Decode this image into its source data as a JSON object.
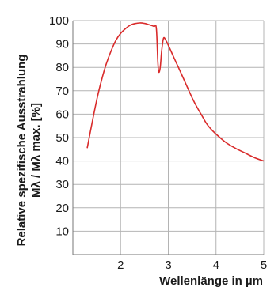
{
  "chart_data": {
    "type": "line",
    "title": "",
    "xlabel": "Wellenlänge in µm",
    "ylabel_line1": "Relative spezifische Ausstrahlung",
    "ylabel_line2": "Mλ / Mλ  max. [%]",
    "xlim": [
      1,
      5
    ],
    "ylim": [
      0,
      100
    ],
    "grid": true,
    "x_ticks": [
      2,
      3,
      4,
      5
    ],
    "y_ticks": [
      10,
      20,
      30,
      40,
      50,
      60,
      70,
      80,
      90,
      100
    ],
    "line_color": "#d92b2b",
    "series": [
      {
        "x": [
          1.3,
          1.4,
          1.5,
          1.6,
          1.7,
          1.8,
          1.9,
          2.0,
          2.1,
          2.2,
          2.3,
          2.4,
          2.5,
          2.6,
          2.7,
          2.75,
          2.78,
          2.8,
          2.83,
          2.86,
          2.9,
          2.95,
          3.0,
          3.1,
          3.2,
          3.3,
          3.4,
          3.5,
          3.6,
          3.7,
          3.8,
          3.9,
          4.0,
          4.2,
          4.4,
          4.6,
          4.8,
          5.0
        ],
        "y": [
          45.5,
          56,
          66,
          74.5,
          81.5,
          87,
          91.5,
          94.5,
          96.5,
          98,
          98.7,
          99,
          98.8,
          98.2,
          97.5,
          96.7,
          83,
          78,
          80,
          87,
          92.5,
          91.5,
          89.5,
          85,
          80.5,
          76,
          71.5,
          67,
          63,
          59.5,
          56,
          53.5,
          51.5,
          48,
          45.5,
          43.5,
          41.5,
          40
        ]
      }
    ]
  }
}
